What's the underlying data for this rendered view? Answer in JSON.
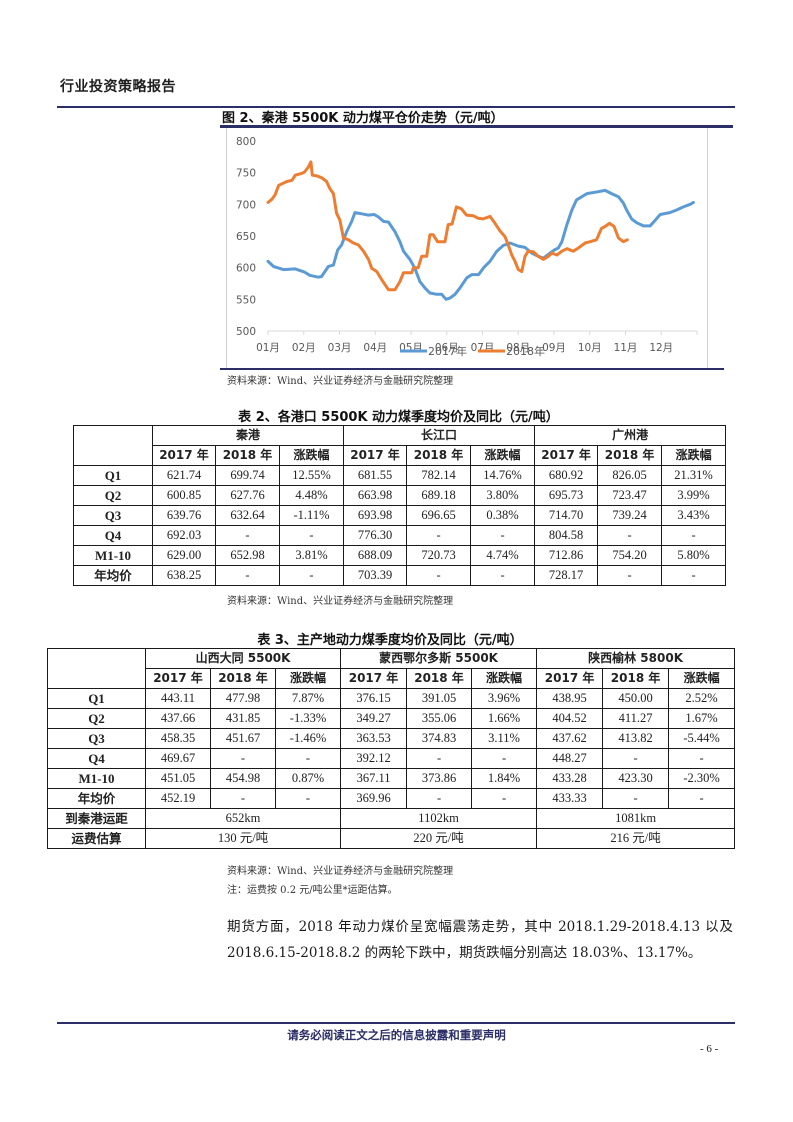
{
  "header": {
    "title": "行业投资策略报告"
  },
  "figure2": {
    "title": "图 2、秦港 5500K 动力煤平仓价走势（元/吨）",
    "source": "资料来源：Wind、兴业证券经济与金融研究院整理"
  },
  "chart_data": {
    "type": "line",
    "title": "图 2、秦港 5500K 动力煤平仓价走势（元/吨）",
    "xlabel": "",
    "ylabel": "元/吨",
    "ylim": [
      500,
      800
    ],
    "y_ticks": [
      500,
      550,
      600,
      650,
      700,
      750,
      800
    ],
    "x_tick_labels": [
      "01月",
      "02月",
      "03月",
      "04月",
      "05月",
      "06月",
      "07月",
      "08月",
      "09月",
      "10月",
      "11月",
      "12月"
    ],
    "grid": false,
    "legend_position": "bottom",
    "x_unit": "month offset from Jan 1 (0-12)",
    "series": [
      {
        "name": "2017年",
        "color": "#5B9BD5",
        "points": [
          [
            0.0,
            610
          ],
          [
            0.15,
            602
          ],
          [
            0.43,
            597
          ],
          [
            0.76,
            598
          ],
          [
            1.02,
            593
          ],
          [
            1.17,
            588
          ],
          [
            1.41,
            585
          ],
          [
            1.5,
            586
          ],
          [
            1.69,
            602
          ],
          [
            1.83,
            604
          ],
          [
            1.95,
            628
          ],
          [
            2.06,
            636
          ],
          [
            2.2,
            657
          ],
          [
            2.34,
            673
          ],
          [
            2.43,
            687
          ],
          [
            2.62,
            685
          ],
          [
            2.81,
            683
          ],
          [
            2.97,
            684
          ],
          [
            3.09,
            680
          ],
          [
            3.23,
            673
          ],
          [
            3.37,
            672
          ],
          [
            3.55,
            657
          ],
          [
            3.69,
            641
          ],
          [
            3.79,
            626
          ],
          [
            3.97,
            613
          ],
          [
            4.11,
            599
          ],
          [
            4.25,
            578
          ],
          [
            4.39,
            568
          ],
          [
            4.53,
            560
          ],
          [
            4.72,
            558
          ],
          [
            4.86,
            558
          ],
          [
            4.98,
            550
          ],
          [
            5.09,
            552
          ],
          [
            5.23,
            558
          ],
          [
            5.37,
            568
          ],
          [
            5.56,
            584
          ],
          [
            5.7,
            589
          ],
          [
            5.89,
            589
          ],
          [
            6.03,
            600
          ],
          [
            6.21,
            610
          ],
          [
            6.4,
            626
          ],
          [
            6.58,
            635
          ],
          [
            6.77,
            639
          ],
          [
            7.0,
            634
          ],
          [
            7.19,
            632
          ],
          [
            7.38,
            623
          ],
          [
            7.56,
            618
          ],
          [
            7.7,
            615
          ],
          [
            7.89,
            623
          ],
          [
            8.01,
            628
          ],
          [
            8.12,
            631
          ],
          [
            8.22,
            641
          ],
          [
            8.36,
            668
          ],
          [
            8.5,
            691
          ],
          [
            8.63,
            707
          ],
          [
            8.78,
            712
          ],
          [
            8.92,
            717
          ],
          [
            9.24,
            720
          ],
          [
            9.43,
            722
          ],
          [
            9.61,
            717
          ],
          [
            9.8,
            712
          ],
          [
            9.94,
            702
          ],
          [
            10.03,
            691
          ],
          [
            10.17,
            677
          ],
          [
            10.31,
            671
          ],
          [
            10.5,
            666
          ],
          [
            10.69,
            666
          ],
          [
            10.83,
            675
          ],
          [
            10.97,
            684
          ],
          [
            11.24,
            687
          ],
          [
            11.43,
            691
          ],
          [
            11.62,
            696
          ],
          [
            11.81,
            700
          ],
          [
            11.9,
            703
          ]
        ]
      },
      {
        "name": "2018年",
        "color": "#ED7D31",
        "points": [
          [
            0.0,
            703
          ],
          [
            0.11,
            708
          ],
          [
            0.2,
            715
          ],
          [
            0.3,
            730
          ],
          [
            0.53,
            736
          ],
          [
            0.67,
            738
          ],
          [
            0.76,
            746
          ],
          [
            0.95,
            749
          ],
          [
            1.02,
            751
          ],
          [
            1.13,
            759
          ],
          [
            1.2,
            767
          ],
          [
            1.24,
            746
          ],
          [
            1.36,
            745
          ],
          [
            1.5,
            742
          ],
          [
            1.64,
            736
          ],
          [
            1.73,
            725
          ],
          [
            1.83,
            717
          ],
          [
            1.92,
            686
          ],
          [
            2.01,
            675
          ],
          [
            2.11,
            647
          ],
          [
            2.25,
            644
          ],
          [
            2.39,
            639
          ],
          [
            2.53,
            636
          ],
          [
            2.67,
            626
          ],
          [
            2.81,
            613
          ],
          [
            2.9,
            599
          ],
          [
            3.04,
            594
          ],
          [
            3.18,
            581
          ],
          [
            3.37,
            565
          ],
          [
            3.55,
            565
          ],
          [
            3.69,
            578
          ],
          [
            3.79,
            592
          ],
          [
            4.02,
            592
          ],
          [
            4.07,
            600
          ],
          [
            4.2,
            600
          ],
          [
            4.3,
            618
          ],
          [
            4.44,
            618
          ],
          [
            4.53,
            652
          ],
          [
            4.62,
            652
          ],
          [
            4.74,
            641
          ],
          [
            4.95,
            641
          ],
          [
            5.04,
            668
          ],
          [
            5.15,
            669
          ],
          [
            5.27,
            696
          ],
          [
            5.41,
            693
          ],
          [
            5.55,
            683
          ],
          [
            5.74,
            682
          ],
          [
            5.88,
            678
          ],
          [
            6.02,
            677
          ],
          [
            6.21,
            681
          ],
          [
            6.35,
            670
          ],
          [
            6.49,
            658
          ],
          [
            6.63,
            649
          ],
          [
            6.72,
            636
          ],
          [
            6.82,
            620
          ],
          [
            6.91,
            610
          ],
          [
            7.0,
            597
          ],
          [
            7.1,
            594
          ],
          [
            7.19,
            618
          ],
          [
            7.28,
            626
          ],
          [
            7.42,
            625
          ],
          [
            7.56,
            618
          ],
          [
            7.7,
            613
          ],
          [
            7.84,
            618
          ],
          [
            7.94,
            623
          ],
          [
            8.08,
            620
          ],
          [
            8.22,
            626
          ],
          [
            8.36,
            630
          ],
          [
            8.54,
            626
          ],
          [
            8.68,
            631
          ],
          [
            8.87,
            639
          ],
          [
            9.01,
            641
          ],
          [
            9.19,
            644
          ],
          [
            9.33,
            662
          ],
          [
            9.43,
            665
          ],
          [
            9.55,
            670
          ],
          [
            9.68,
            665
          ],
          [
            9.8,
            647
          ],
          [
            9.94,
            641
          ],
          [
            10.05,
            644
          ]
        ]
      }
    ]
  },
  "table2": {
    "title": "表 2、各港口 5500K 动力煤季度均价及同比（元/吨）",
    "groups": [
      "秦港",
      "长江口",
      "广州港"
    ],
    "subheaders": [
      "2017 年",
      "2018 年",
      "涨跌幅"
    ],
    "rows": [
      {
        "label": "Q1",
        "values": [
          "621.74",
          "699.74",
          "12.55%",
          "681.55",
          "782.14",
          "14.76%",
          "680.92",
          "826.05",
          "21.31%"
        ]
      },
      {
        "label": "Q2",
        "values": [
          "600.85",
          "627.76",
          "4.48%",
          "663.98",
          "689.18",
          "3.80%",
          "695.73",
          "723.47",
          "3.99%"
        ]
      },
      {
        "label": "Q3",
        "values": [
          "639.76",
          "632.64",
          "-1.11%",
          "693.98",
          "696.65",
          "0.38%",
          "714.70",
          "739.24",
          "3.43%"
        ]
      },
      {
        "label": "Q4",
        "values": [
          "692.03",
          "-",
          "-",
          "776.30",
          "-",
          "-",
          "804.58",
          "-",
          "-"
        ]
      },
      {
        "label": "M1-10",
        "values": [
          "629.00",
          "652.98",
          "3.81%",
          "688.09",
          "720.73",
          "4.74%",
          "712.86",
          "754.20",
          "5.80%"
        ]
      },
      {
        "label": "年均价",
        "values": [
          "638.25",
          "-",
          "-",
          "703.39",
          "-",
          "-",
          "728.17",
          "-",
          "-"
        ]
      }
    ],
    "source": "资料来源：Wind、兴业证券经济与金融研究院整理"
  },
  "table3": {
    "title": "表 3、主产地动力煤季度均价及同比（元/吨）",
    "groups": [
      "山西大同 5500K",
      "蒙西鄂尔多斯 5500K",
      "陕西榆林 5800K"
    ],
    "subheaders": [
      "2017 年",
      "2018 年",
      "涨跌幅"
    ],
    "rows": [
      {
        "label": "Q1",
        "values": [
          "443.11",
          "477.98",
          "7.87%",
          "376.15",
          "391.05",
          "3.96%",
          "438.95",
          "450.00",
          "2.52%"
        ]
      },
      {
        "label": "Q2",
        "values": [
          "437.66",
          "431.85",
          "-1.33%",
          "349.27",
          "355.06",
          "1.66%",
          "404.52",
          "411.27",
          "1.67%"
        ]
      },
      {
        "label": "Q3",
        "values": [
          "458.35",
          "451.67",
          "-1.46%",
          "363.53",
          "374.83",
          "3.11%",
          "437.62",
          "413.82",
          "-5.44%"
        ]
      },
      {
        "label": "Q4",
        "values": [
          "469.67",
          "-",
          "-",
          "392.12",
          "-",
          "-",
          "448.27",
          "-",
          "-"
        ]
      },
      {
        "label": "M1-10",
        "values": [
          "451.05",
          "454.98",
          "0.87%",
          "367.11",
          "373.86",
          "1.84%",
          "433.28",
          "423.30",
          "-2.30%"
        ]
      },
      {
        "label": "年均价",
        "values": [
          "452.19",
          "-",
          "-",
          "369.96",
          "-",
          "-",
          "433.33",
          "-",
          "-"
        ]
      }
    ],
    "distance": {
      "label": "到秦港运距",
      "values": [
        "652km",
        "1102km",
        "1081km"
      ]
    },
    "freight": {
      "label": "运费估算",
      "values": [
        "130 元/吨",
        "220 元/吨",
        "216 元/吨"
      ]
    },
    "source": "资料来源：Wind、兴业证券经济与金融研究院整理",
    "note": "注：运费按 0.2 元/吨公里*运距估算。"
  },
  "paragraph": {
    "lines": [
      "期货方面，2018 年动力煤价呈宽幅震荡走势，其中 2018.1.29-2018.4.13 以及",
      "2018.6.15-2018.8.2 的两轮下跌中，期货跌幅分别高达 18.03%、13.17%。"
    ]
  },
  "footer": {
    "disclaimer": "请务必阅读正文之后的信息披露和重要声明",
    "page_number": "- 6 -"
  },
  "colors": {
    "rule": "#2b2e67",
    "series_2017": "#5B9BD5",
    "series_2018": "#ED7D31"
  }
}
